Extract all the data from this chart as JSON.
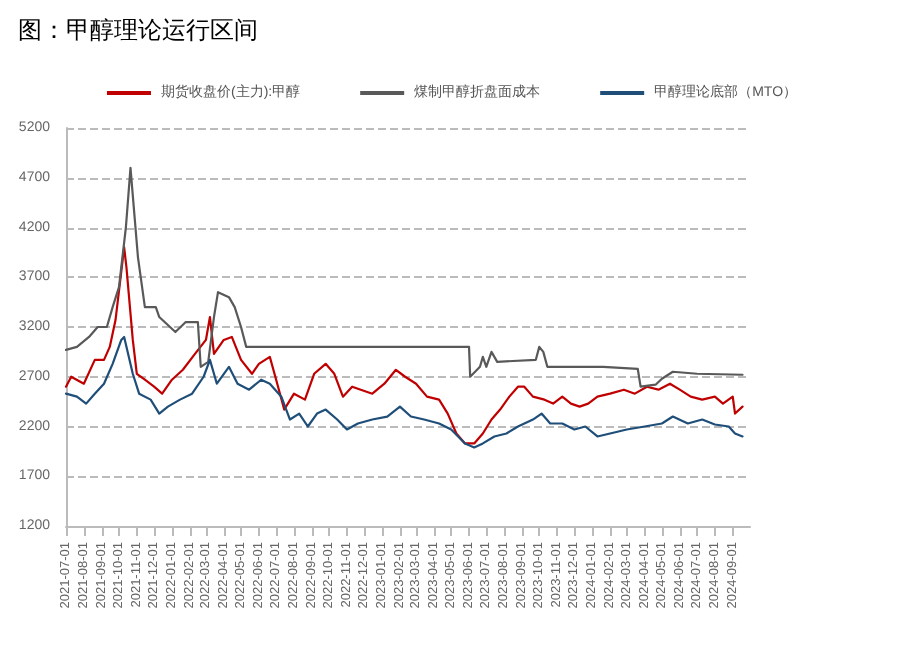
{
  "chart_data": {
    "type": "line",
    "title": "图：甲醇理论运行区间",
    "xlim": [
      "2021-07-01",
      "2024-10-01"
    ],
    "xticks": [
      "2021-07-01",
      "2021-08-01",
      "2021-09-01",
      "2021-10-01",
      "2021-11-01",
      "2021-12-01",
      "2022-01-01",
      "2022-02-01",
      "2022-03-01",
      "2022-04-01",
      "2022-05-01",
      "2022-06-01",
      "2022-07-01",
      "2022-08-01",
      "2022-09-01",
      "2022-10-01",
      "2022-11-01",
      "2022-12-01",
      "2023-01-01",
      "2023-02-01",
      "2023-03-01",
      "2023-04-01",
      "2023-05-01",
      "2023-06-01",
      "2023-07-01",
      "2023-08-01",
      "2023-09-01",
      "2023-10-01",
      "2023-11-01",
      "2023-12-01",
      "2024-01-01",
      "2024-02-01",
      "2024-03-01",
      "2024-04-01",
      "2024-05-01",
      "2024-06-01",
      "2024-07-01",
      "2024-08-01",
      "2024-09-01"
    ],
    "ylim": [
      1200,
      5200
    ],
    "yticks": [
      1200,
      1700,
      2200,
      2700,
      3200,
      3700,
      4200,
      4700,
      5200
    ],
    "grid": "y",
    "legend": "top",
    "marker": "none",
    "line_style": "solid",
    "series": [
      {
        "name": "期货收盘价(主力):甲醇",
        "color": "#c00000",
        "x": [
          "2021-07-01",
          "2021-07-10",
          "2021-08-01",
          "2021-08-20",
          "2021-09-05",
          "2021-09-15",
          "2021-09-25",
          "2021-10-10",
          "2021-10-14",
          "2021-10-25",
          "2021-11-01",
          "2021-11-15",
          "2021-12-01",
          "2021-12-15",
          "2022-01-01",
          "2022-01-20",
          "2022-02-10",
          "2022-03-01",
          "2022-03-08",
          "2022-03-15",
          "2022-04-01",
          "2022-04-15",
          "2022-05-01",
          "2022-05-20",
          "2022-06-01",
          "2022-06-20",
          "2022-07-01",
          "2022-07-15",
          "2022-08-01",
          "2022-08-20",
          "2022-09-05",
          "2022-09-25",
          "2022-10-10",
          "2022-10-25",
          "2022-11-10",
          "2022-11-25",
          "2022-12-15",
          "2023-01-05",
          "2023-01-25",
          "2023-02-10",
          "2023-03-01",
          "2023-03-20",
          "2023-04-10",
          "2023-04-25",
          "2023-05-10",
          "2023-05-25",
          "2023-06-10",
          "2023-06-25",
          "2023-07-10",
          "2023-07-25",
          "2023-08-10",
          "2023-08-25",
          "2023-09-05",
          "2023-09-20",
          "2023-10-10",
          "2023-10-25",
          "2023-11-10",
          "2023-11-25",
          "2023-12-10",
          "2023-12-25",
          "2024-01-10",
          "2024-02-01",
          "2024-02-25",
          "2024-03-15",
          "2024-04-05",
          "2024-04-25",
          "2024-05-15",
          "2024-06-01",
          "2024-06-20",
          "2024-07-10",
          "2024-08-01",
          "2024-08-15",
          "2024-09-01",
          "2024-09-05",
          "2024-09-18"
        ],
        "values": [
          2600,
          2700,
          2630,
          2870,
          2870,
          3000,
          3270,
          4000,
          3800,
          3070,
          2730,
          2670,
          2600,
          2530,
          2670,
          2770,
          2930,
          3070,
          3300,
          2930,
          3070,
          3100,
          2870,
          2730,
          2830,
          2900,
          2670,
          2370,
          2530,
          2470,
          2730,
          2830,
          2730,
          2500,
          2600,
          2570,
          2530,
          2630,
          2770,
          2700,
          2630,
          2500,
          2470,
          2330,
          2130,
          2030,
          2030,
          2130,
          2270,
          2370,
          2500,
          2600,
          2600,
          2500,
          2470,
          2430,
          2500,
          2430,
          2400,
          2430,
          2500,
          2530,
          2570,
          2530,
          2600,
          2570,
          2630,
          2570,
          2500,
          2470,
          2500,
          2430,
          2500,
          2330,
          2400
        ]
      },
      {
        "name": "煤制甲醇折盘面成本",
        "color": "#595959",
        "x": [
          "2021-07-01",
          "2021-07-20",
          "2021-08-10",
          "2021-08-25",
          "2021-09-10",
          "2021-09-20",
          "2021-10-01",
          "2021-10-13",
          "2021-10-21",
          "2021-11-03",
          "2021-11-15",
          "2021-12-04",
          "2021-12-10",
          "2022-01-07",
          "2022-01-25",
          "2022-02-15",
          "2022-02-20",
          "2022-03-05",
          "2022-03-15",
          "2022-03-22",
          "2022-04-10",
          "2022-04-20",
          "2022-05-01",
          "2022-05-10",
          "2023-06-01",
          "2023-06-03",
          "2023-06-20",
          "2023-06-25",
          "2023-07-01",
          "2023-07-10",
          "2023-07-20",
          "2023-09-25",
          "2023-10-01",
          "2023-10-08",
          "2023-10-15",
          "2024-01-20",
          "2024-03-20",
          "2024-03-25",
          "2024-04-20",
          "2024-05-01",
          "2024-05-20",
          "2024-07-01",
          "2024-09-18"
        ],
        "values": [
          2970,
          3000,
          3100,
          3200,
          3200,
          3400,
          3600,
          4200,
          4800,
          3900,
          3400,
          3400,
          3300,
          3150,
          3250,
          3250,
          2800,
          2850,
          3300,
          3550,
          3500,
          3400,
          3200,
          3000,
          3000,
          2700,
          2800,
          2900,
          2800,
          2950,
          2850,
          2870,
          3000,
          2950,
          2800,
          2800,
          2780,
          2600,
          2620,
          2680,
          2750,
          2730,
          2720
        ]
      },
      {
        "name": "甲醇理论底部（MTO）",
        "color": "#1f4e79",
        "x": [
          "2021-07-01",
          "2021-07-20",
          "2021-08-05",
          "2021-08-20",
          "2021-09-05",
          "2021-09-20",
          "2021-10-05",
          "2021-10-10",
          "2021-10-25",
          "2021-11-05",
          "2021-11-25",
          "2021-12-10",
          "2021-12-25",
          "2022-01-15",
          "2022-02-05",
          "2022-02-25",
          "2022-03-08",
          "2022-03-20",
          "2022-04-10",
          "2022-04-25",
          "2022-05-15",
          "2022-06-05",
          "2022-06-20",
          "2022-07-10",
          "2022-07-25",
          "2022-08-10",
          "2022-08-25",
          "2022-09-10",
          "2022-09-25",
          "2022-10-15",
          "2022-11-01",
          "2022-11-20",
          "2022-12-15",
          "2023-01-10",
          "2023-02-01",
          "2023-02-20",
          "2023-03-15",
          "2023-04-10",
          "2023-05-01",
          "2023-05-25",
          "2023-06-10",
          "2023-06-25",
          "2023-07-15",
          "2023-08-05",
          "2023-08-25",
          "2023-09-20",
          "2023-10-05",
          "2023-10-20",
          "2023-11-10",
          "2023-12-01",
          "2023-12-20",
          "2024-01-10",
          "2024-02-01",
          "2024-03-01",
          "2024-04-01",
          "2024-05-01",
          "2024-05-20",
          "2024-06-15",
          "2024-07-10",
          "2024-08-01",
          "2024-08-25",
          "2024-09-05",
          "2024-09-18"
        ],
        "values": [
          2530,
          2500,
          2430,
          2530,
          2630,
          2830,
          3070,
          3100,
          2730,
          2530,
          2470,
          2330,
          2400,
          2470,
          2530,
          2700,
          2870,
          2630,
          2800,
          2630,
          2570,
          2670,
          2630,
          2500,
          2270,
          2330,
          2200,
          2330,
          2370,
          2270,
          2170,
          2230,
          2270,
          2300,
          2400,
          2300,
          2270,
          2230,
          2170,
          2030,
          1990,
          2030,
          2100,
          2130,
          2200,
          2270,
          2330,
          2230,
          2230,
          2170,
          2200,
          2100,
          2130,
          2170,
          2200,
          2230,
          2300,
          2230,
          2270,
          2220,
          2200,
          2130,
          2100
        ]
      }
    ]
  }
}
